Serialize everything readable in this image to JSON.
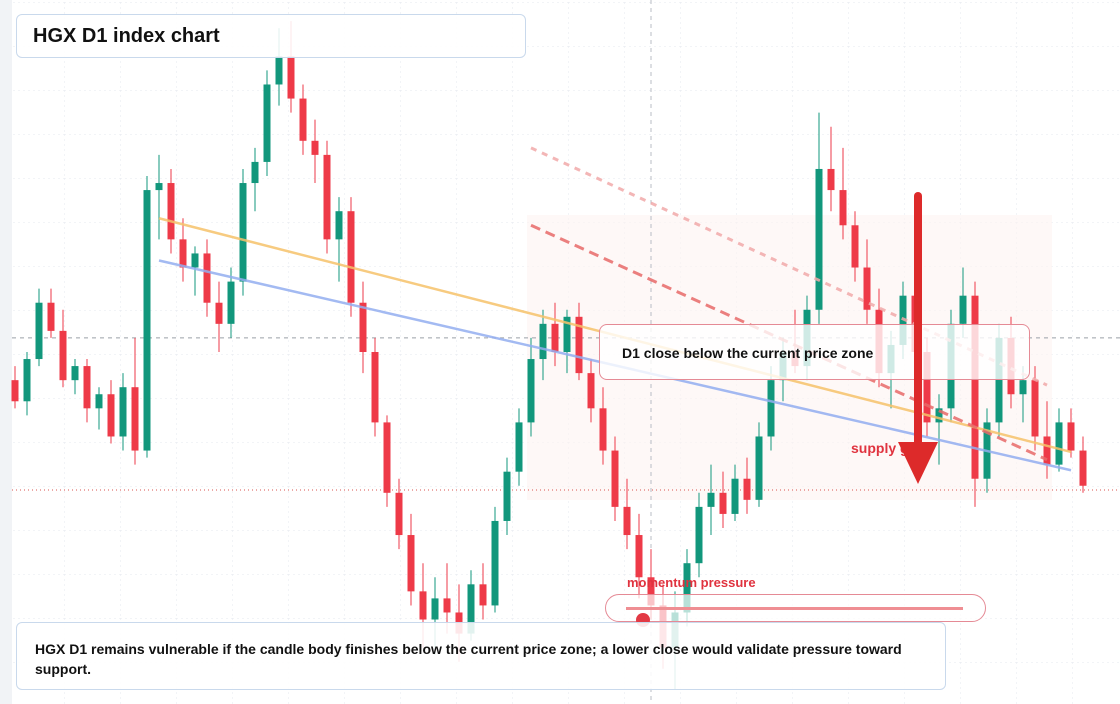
{
  "chart_data": {
    "type": "candlestick",
    "title": "HGX D1 index chart",
    "ylim": [
      0,
      100
    ],
    "up_color": "#12977c",
    "down_color": "#ee3a48",
    "candles": [
      [
        46,
        48,
        42,
        43
      ],
      [
        43,
        50,
        41,
        49
      ],
      [
        49,
        59,
        48,
        57
      ],
      [
        57,
        59,
        52,
        53
      ],
      [
        53,
        56,
        45,
        46
      ],
      [
        46,
        49,
        44,
        48
      ],
      [
        48,
        49,
        40,
        42
      ],
      [
        42,
        45,
        39,
        44
      ],
      [
        44,
        46,
        37,
        38
      ],
      [
        38,
        47,
        36,
        45
      ],
      [
        45,
        52,
        34,
        36
      ],
      [
        36,
        75,
        35,
        73
      ],
      [
        73,
        78,
        66,
        74
      ],
      [
        74,
        76,
        64,
        66
      ],
      [
        66,
        69,
        60,
        62
      ],
      [
        62,
        65,
        58,
        64
      ],
      [
        64,
        66,
        55,
        57
      ],
      [
        57,
        60,
        50,
        54
      ],
      [
        54,
        62,
        52,
        60
      ],
      [
        60,
        76,
        58,
        74
      ],
      [
        74,
        79,
        70,
        77
      ],
      [
        77,
        90,
        75,
        88
      ],
      [
        88,
        96,
        85,
        92
      ],
      [
        92,
        97,
        84,
        86
      ],
      [
        86,
        88,
        78,
        80
      ],
      [
        80,
        83,
        74,
        78
      ],
      [
        78,
        80,
        64,
        66
      ],
      [
        66,
        72,
        60,
        70
      ],
      [
        70,
        72,
        55,
        57
      ],
      [
        57,
        60,
        47,
        50
      ],
      [
        50,
        52,
        38,
        40
      ],
      [
        40,
        41,
        28,
        30
      ],
      [
        30,
        32,
        22,
        24
      ],
      [
        24,
        27,
        14,
        16
      ],
      [
        16,
        20,
        8,
        12
      ],
      [
        12,
        18,
        7,
        15
      ],
      [
        15,
        20,
        10,
        13
      ],
      [
        13,
        17,
        6,
        10
      ],
      [
        10,
        19,
        9,
        17
      ],
      [
        17,
        20,
        12,
        14
      ],
      [
        14,
        28,
        13,
        26
      ],
      [
        26,
        35,
        24,
        33
      ],
      [
        33,
        42,
        31,
        40
      ],
      [
        40,
        52,
        38,
        49
      ],
      [
        49,
        56,
        46,
        54
      ],
      [
        54,
        57,
        48,
        50
      ],
      [
        50,
        56,
        47,
        55
      ],
      [
        55,
        57,
        46,
        47
      ],
      [
        47,
        49,
        40,
        42
      ],
      [
        42,
        45,
        34,
        36
      ],
      [
        36,
        38,
        26,
        28
      ],
      [
        28,
        32,
        22,
        24
      ],
      [
        24,
        27,
        15,
        18
      ],
      [
        18,
        22,
        12,
        14
      ],
      [
        14,
        17,
        5,
        8
      ],
      [
        8,
        16,
        2,
        13
      ],
      [
        13,
        22,
        11,
        20
      ],
      [
        20,
        30,
        18,
        28
      ],
      [
        28,
        34,
        24,
        30
      ],
      [
        30,
        33,
        25,
        27
      ],
      [
        27,
        34,
        26,
        32
      ],
      [
        32,
        35,
        27,
        29
      ],
      [
        29,
        40,
        28,
        38
      ],
      [
        38,
        48,
        36,
        46
      ],
      [
        46,
        52,
        43,
        50
      ],
      [
        50,
        56,
        47,
        48
      ],
      [
        48,
        58,
        46,
        56
      ],
      [
        56,
        84,
        54,
        76
      ],
      [
        76,
        82,
        70,
        73
      ],
      [
        73,
        79,
        66,
        68
      ],
      [
        68,
        70,
        60,
        62
      ],
      [
        62,
        66,
        54,
        56
      ],
      [
        56,
        59,
        45,
        47
      ],
      [
        47,
        53,
        42,
        51
      ],
      [
        51,
        60,
        49,
        58
      ],
      [
        58,
        62,
        48,
        50
      ],
      [
        50,
        52,
        38,
        40
      ],
      [
        40,
        44,
        34,
        42
      ],
      [
        42,
        56,
        40,
        54
      ],
      [
        54,
        62,
        52,
        58
      ],
      [
        58,
        60,
        28,
        32
      ],
      [
        32,
        42,
        30,
        40
      ],
      [
        40,
        54,
        38,
        52
      ],
      [
        52,
        55,
        42,
        44
      ],
      [
        44,
        48,
        40,
        46
      ],
      [
        46,
        48,
        36,
        38
      ],
      [
        38,
        43,
        32,
        34
      ],
      [
        34,
        42,
        33,
        40
      ],
      [
        40,
        42,
        35,
        36
      ],
      [
        36,
        38,
        30,
        31
      ]
    ],
    "trendlines": [
      {
        "color": "#f6c26b",
        "style": "solid",
        "from": [
          12,
          69
        ],
        "to": [
          88,
          35.8
        ]
      },
      {
        "color": "#93aef0",
        "style": "solid",
        "from": [
          12,
          63
        ],
        "to": [
          88,
          33.2
        ]
      },
      {
        "color": "#e86a6a",
        "style": "dashed",
        "from": [
          43,
          68
        ],
        "to": [
          86,
          34.7
        ]
      },
      {
        "color": "#f2aaaa",
        "style": "dashed",
        "from": [
          43,
          79
        ],
        "to": [
          86,
          45.3
        ]
      }
    ],
    "current_price_level": 52,
    "support_level": 30.4,
    "cursor_index": 53,
    "callout": "D1 close below the current price zone",
    "zone_label": "supply gap",
    "slider": {
      "label": "momentum pressure",
      "value": 5,
      "min": 0,
      "max": 100
    },
    "note": "HGX D1 remains vulnerable if the candle body finishes below the current price zone; a lower close would validate pressure toward support."
  }
}
